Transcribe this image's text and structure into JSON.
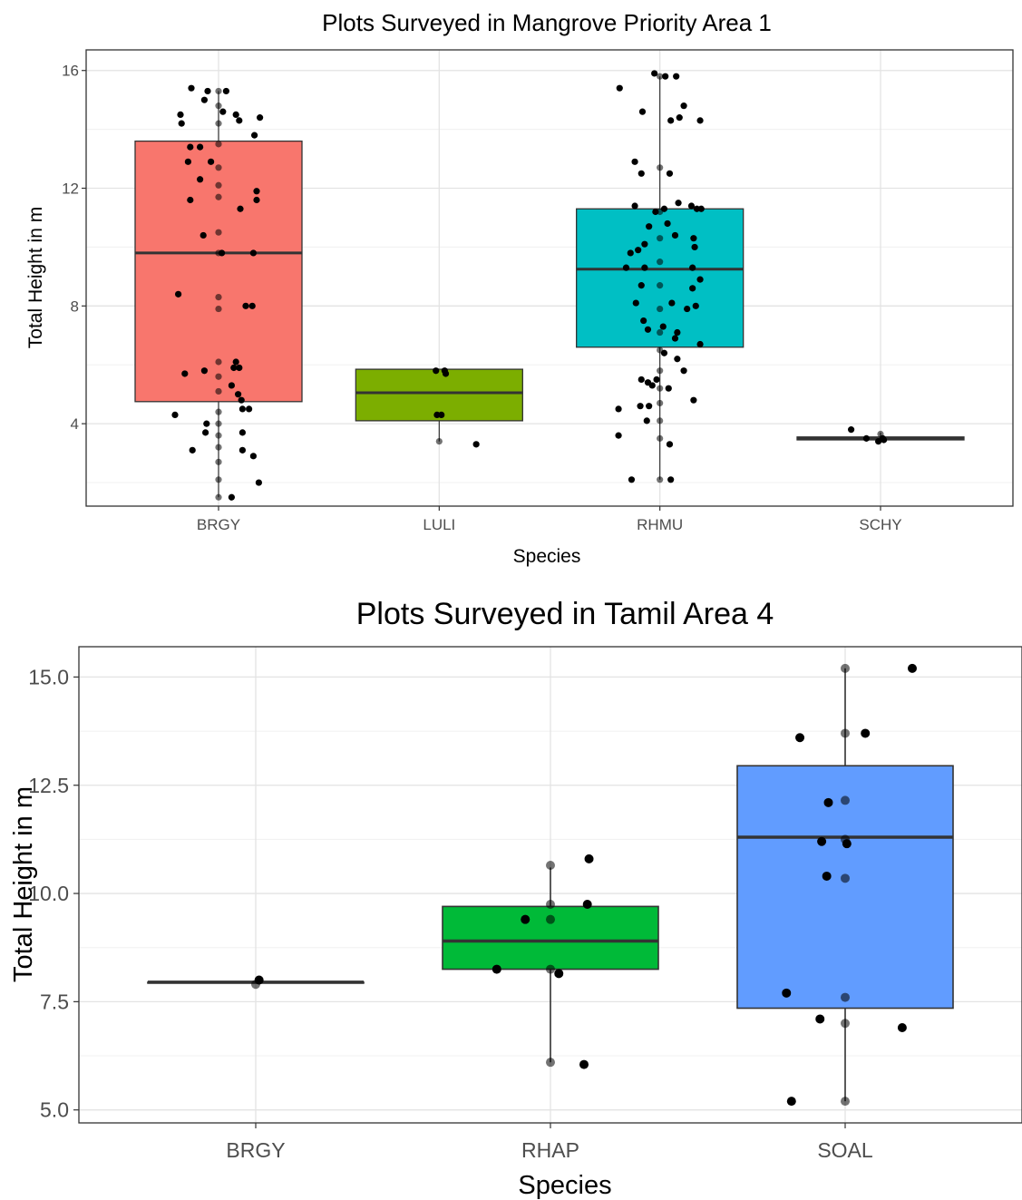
{
  "chart_data": [
    {
      "type": "box",
      "title": "Plots Surveyed in Mangrove Priority Area 1",
      "xlabel": "Species",
      "ylabel": "Total Height in m",
      "ylim": [
        1.2,
        16.7
      ],
      "yticks": [
        4,
        8,
        12,
        16
      ],
      "grid": true,
      "categories": [
        "BRGY",
        "LULI",
        "RHMU",
        "SCHY"
      ],
      "boxes": [
        {
          "category": "BRGY",
          "color": "#F8766D",
          "q1": 4.75,
          "median": 9.8,
          "q3": 13.6,
          "whisker_low": 1.5,
          "whisker_high": 15.3,
          "points": [
            [
              -0.1,
              15.3
            ],
            [
              0.07,
              15.3
            ],
            [
              -0.25,
              15.4
            ],
            [
              -0.13,
              15.0
            ],
            [
              0.04,
              14.6
            ],
            [
              0.16,
              14.5
            ],
            [
              0.19,
              14.3
            ],
            [
              -0.35,
              14.5
            ],
            [
              -0.34,
              14.2
            ],
            [
              0.33,
              13.8
            ],
            [
              0.38,
              14.4
            ],
            [
              -0.26,
              13.4
            ],
            [
              -0.28,
              12.9
            ],
            [
              -0.17,
              13.4
            ],
            [
              -0.07,
              12.9
            ],
            [
              -0.17,
              12.3
            ],
            [
              -0.26,
              11.6
            ],
            [
              0.35,
              11.9
            ],
            [
              0.35,
              11.6
            ],
            [
              0.2,
              11.3
            ],
            [
              -0.14,
              10.4
            ],
            [
              0.03,
              9.8
            ],
            [
              0.32,
              9.8
            ],
            [
              -0.37,
              8.4
            ],
            [
              0.25,
              8.0
            ],
            [
              0.31,
              8.0
            ],
            [
              -0.31,
              5.7
            ],
            [
              -0.13,
              5.8
            ],
            [
              0.12,
              5.3
            ],
            [
              0.14,
              5.9
            ],
            [
              0.16,
              6.1
            ],
            [
              0.19,
              5.9
            ],
            [
              0.18,
              5.0
            ],
            [
              0.21,
              4.8
            ],
            [
              0.22,
              4.5
            ],
            [
              0.28,
              4.5
            ],
            [
              -0.4,
              4.3
            ],
            [
              -0.12,
              3.7
            ],
            [
              -0.11,
              4.0
            ],
            [
              0.22,
              3.7
            ],
            [
              -0.24,
              3.1
            ],
            [
              0.22,
              3.1
            ],
            [
              0.32,
              2.9
            ],
            [
              0.37,
              2.0
            ],
            [
              0.12,
              1.5
            ],
            [
              0,
              15.3
            ],
            [
              0,
              14.8
            ],
            [
              0,
              14.2
            ],
            [
              0,
              13.5
            ],
            [
              0,
              12.7
            ],
            [
              0,
              12.1
            ],
            [
              0,
              11.7
            ],
            [
              0,
              10.5
            ],
            [
              0,
              9.8
            ],
            [
              0,
              8.3
            ],
            [
              0,
              7.9
            ],
            [
              0,
              6.1
            ],
            [
              0,
              5.6
            ],
            [
              0,
              5.1
            ],
            [
              0,
              4.4
            ],
            [
              0,
              4.0
            ],
            [
              0,
              3.6
            ],
            [
              0,
              3.2
            ],
            [
              0,
              2.7
            ],
            [
              0,
              2.1
            ],
            [
              0,
              1.5
            ]
          ]
        },
        {
          "category": "LULI",
          "color": "#7CAE00",
          "q1": 4.1,
          "median": 5.05,
          "q3": 5.85,
          "whisker_low": 3.4,
          "whisker_high": 5.85,
          "points": [
            [
              -0.03,
              5.8
            ],
            [
              0.05,
              5.8
            ],
            [
              0.06,
              5.7
            ],
            [
              -0.02,
              4.3
            ],
            [
              0.02,
              4.3
            ],
            [
              0,
              3.4
            ],
            [
              0.34,
              3.3
            ]
          ]
        },
        {
          "category": "RHMU",
          "color": "#00BFC4",
          "q1": 6.6,
          "median": 9.25,
          "q3": 11.3,
          "whisker_low": 2.1,
          "whisker_high": 15.8,
          "points": [
            [
              -0.37,
              15.4
            ],
            [
              -0.16,
              14.6
            ],
            [
              -0.05,
              15.9
            ],
            [
              0.05,
              15.8
            ],
            [
              0.15,
              15.8
            ],
            [
              0.18,
              14.4
            ],
            [
              0.1,
              14.3
            ],
            [
              0.22,
              14.8
            ],
            [
              0.37,
              14.3
            ],
            [
              -0.23,
              12.9
            ],
            [
              -0.17,
              12.5
            ],
            [
              0.09,
              12.5
            ],
            [
              -0.23,
              11.4
            ],
            [
              -0.04,
              11.2
            ],
            [
              0.04,
              11.3
            ],
            [
              0.17,
              11.5
            ],
            [
              0.29,
              11.4
            ],
            [
              0.34,
              11.3
            ],
            [
              0.38,
              11.3
            ],
            [
              -0.1,
              10.7
            ],
            [
              -0.14,
              10.1
            ],
            [
              0.07,
              10.8
            ],
            [
              0.14,
              10.4
            ],
            [
              0.31,
              10.3
            ],
            [
              0.32,
              10.0
            ],
            [
              -0.27,
              9.8
            ],
            [
              -0.2,
              9.9
            ],
            [
              -0.31,
              9.3
            ],
            [
              -0.14,
              9.3
            ],
            [
              0.3,
              9.3
            ],
            [
              0.37,
              8.9
            ],
            [
              -0.17,
              8.7
            ],
            [
              -0.22,
              8.1
            ],
            [
              0.11,
              8.1
            ],
            [
              0.3,
              8.6
            ],
            [
              0.33,
              8.0
            ],
            [
              -0.11,
              7.2
            ],
            [
              0.03,
              7.3
            ],
            [
              0.16,
              7.1
            ],
            [
              0.25,
              7.9
            ],
            [
              0.37,
              6.7
            ],
            [
              0.14,
              6.9
            ],
            [
              -0.15,
              7.5
            ],
            [
              0.04,
              6.4
            ],
            [
              0.16,
              6.2
            ],
            [
              0.22,
              5.8
            ],
            [
              -0.17,
              5.5
            ],
            [
              -0.11,
              5.4
            ],
            [
              -0.07,
              5.3
            ],
            [
              -0.03,
              5.5
            ],
            [
              0.08,
              5.2
            ],
            [
              -0.38,
              4.5
            ],
            [
              0.31,
              4.8
            ],
            [
              -0.18,
              4.6
            ],
            [
              -0.12,
              4.1
            ],
            [
              -0.1,
              4.6
            ],
            [
              -0.38,
              3.6
            ],
            [
              0.09,
              3.3
            ],
            [
              -0.26,
              2.1
            ],
            [
              0.1,
              2.1
            ],
            [
              0,
              15.8
            ],
            [
              0,
              12.7
            ],
            [
              0,
              11.2
            ],
            [
              0,
              10.3
            ],
            [
              0,
              9.5
            ],
            [
              0,
              8.7
            ],
            [
              0,
              7.9
            ],
            [
              0,
              7.1
            ],
            [
              0,
              6.5
            ],
            [
              0,
              5.8
            ],
            [
              0,
              5.2
            ],
            [
              0,
              4.7
            ],
            [
              0,
              4.1
            ],
            [
              0,
              3.5
            ],
            [
              0,
              2.1
            ]
          ]
        },
        {
          "category": "SCHY",
          "color": "#C77CFF",
          "q1": 3.45,
          "median": 3.5,
          "q3": 3.55,
          "whisker_low": 3.4,
          "whisker_high": 3.7,
          "points": [
            [
              -0.27,
              3.8
            ],
            [
              -0.13,
              3.5
            ],
            [
              -0.02,
              3.4
            ],
            [
              0.03,
              3.45
            ],
            [
              0.0,
              3.65
            ],
            [
              0.02,
              3.5
            ]
          ]
        }
      ]
    },
    {
      "type": "box",
      "title": "Plots Surveyed in Tamil Area 4",
      "xlabel": "Species",
      "ylabel": "Total Height in m",
      "ylim": [
        4.7,
        15.7
      ],
      "yticks": [
        "5.0",
        "7.5",
        "10.0",
        "12.5",
        "15.0"
      ],
      "grid": true,
      "categories": [
        "BRGY",
        "RHAP",
        "SOAL"
      ],
      "boxes": [
        {
          "category": "BRGY",
          "color": "#F8766D",
          "q1": 7.95,
          "median": 7.95,
          "q3": 7.95,
          "whisker_low": 7.95,
          "whisker_high": 7.95,
          "points": [
            [
              0,
              7.9
            ],
            [
              0.02,
              8.0
            ]
          ]
        },
        {
          "category": "RHAP",
          "color": "#00BA38",
          "q1": 8.25,
          "median": 8.9,
          "q3": 9.7,
          "whisker_low": 6.1,
          "whisker_high": 10.6,
          "points": [
            [
              -0.15,
              9.4
            ],
            [
              -0.32,
              8.25
            ],
            [
              0.22,
              9.75
            ],
            [
              0.23,
              10.8
            ],
            [
              0.05,
              8.15
            ],
            [
              0.2,
              6.05
            ],
            [
              0,
              10.65
            ],
            [
              0,
              9.75
            ],
            [
              0,
              9.4
            ],
            [
              0,
              8.25
            ],
            [
              0,
              6.1
            ]
          ]
        },
        {
          "category": "SOAL",
          "color": "#619CFF",
          "q1": 7.35,
          "median": 11.3,
          "q3": 12.95,
          "whisker_low": 5.2,
          "whisker_high": 15.2,
          "points": [
            [
              -0.27,
              13.6
            ],
            [
              0.12,
              13.7
            ],
            [
              -0.1,
              12.1
            ],
            [
              -0.14,
              11.2
            ],
            [
              0.01,
              11.15
            ],
            [
              -0.11,
              10.4
            ],
            [
              -0.35,
              7.7
            ],
            [
              -0.15,
              7.1
            ],
            [
              0.34,
              6.9
            ],
            [
              -0.32,
              5.2
            ],
            [
              0.4,
              15.2
            ],
            [
              0,
              15.2
            ],
            [
              0,
              13.7
            ],
            [
              0,
              12.15
            ],
            [
              0,
              11.25
            ],
            [
              0,
              10.35
            ],
            [
              0,
              7.6
            ],
            [
              0,
              7.0
            ],
            [
              0,
              5.2
            ]
          ]
        }
      ]
    }
  ]
}
